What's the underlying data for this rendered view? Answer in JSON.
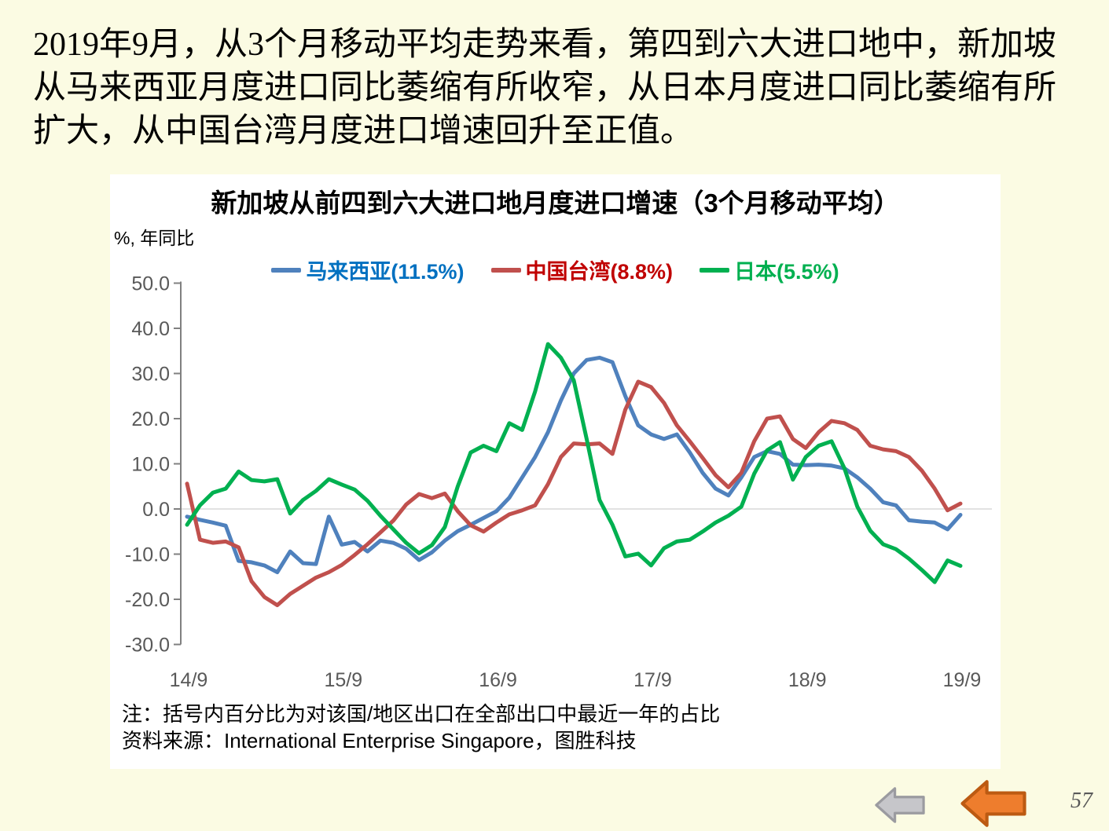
{
  "slide": {
    "background": "#FBFBE3",
    "page_number": "57",
    "intro_text": "2019年9月，从3个月移动平均走势来看，第四到六大进口地中，新加坡从马来西亚月度进口同比萎缩有所收窄，从日本月度进口同比萎缩有所扩大，从中国台湾月度进口增速回升至正值。"
  },
  "chart": {
    "title": "新加坡从前四到六大进口地月度进口增速（3个月移动平均）",
    "unit_label": "%, 年同比",
    "note_line1": "注：括号内百分比为对该国/地区出口在全部出口中最近一年的占比",
    "note_line2": "资料来源：International Enterprise Singapore，图胜科技",
    "legend": [
      {
        "label": "马来西亚(11.5%)",
        "text_color": "#0070C0",
        "line_color": "#4F81BD"
      },
      {
        "label": "中国台湾(8.8%)",
        "text_color": "#C00000",
        "line_color": "#C0504D"
      },
      {
        "label": "日本(5.5%)",
        "text_color": "#00B050",
        "line_color": "#00B050"
      }
    ],
    "colors": {
      "axis": "#808080",
      "tick_label": "#595959",
      "zero_gridline": "#D9D9D9",
      "gray_arrow_fill": "#C6C6CA",
      "gray_arrow_stroke": "#9B9BA0",
      "orange_arrow_fill": "#EE7D2D",
      "orange_arrow_stroke": "#BC5A12"
    }
  },
  "chart_data": {
    "type": "line",
    "title": "新加坡从前四到六大进口地月度进口增速（3个月移动平均）",
    "ylabel": "%, 年同比",
    "ylim": [
      -30,
      50
    ],
    "y_ticks": [
      50,
      40,
      30,
      20,
      10,
      0,
      -10,
      -20,
      -30
    ],
    "x_tick_labels": [
      "14/9",
      "15/9",
      "16/9",
      "17/9",
      "18/9",
      "19/9"
    ],
    "x_interval": "monthly from 2014/9 to 2019/9 (61 points)",
    "grid": "zero line only",
    "legend_position": "top",
    "series": [
      {
        "name": "马来西亚(11.5%)",
        "color": "#4F81BD",
        "values": [
          -1.7,
          -2.4,
          -3.0,
          -3.7,
          -11.5,
          -11.8,
          -12.5,
          -14.0,
          -9.4,
          -12.0,
          -12.2,
          -1.7,
          -7.9,
          -7.3,
          -9.4,
          -7.0,
          -7.5,
          -8.8,
          -11.3,
          -9.6,
          -7.0,
          -4.9,
          -3.5,
          -2.0,
          -0.5,
          2.5,
          7.0,
          11.5,
          17.0,
          24.0,
          30.0,
          33.0,
          33.5,
          32.5,
          25.0,
          18.5,
          16.5,
          15.5,
          16.5,
          12.5,
          8.0,
          4.5,
          3.0,
          7.0,
          11.5,
          12.8,
          12.2,
          9.8,
          9.7,
          9.8,
          9.6,
          9.0,
          7.0,
          4.5,
          1.5,
          0.8,
          -2.5,
          -2.8,
          -3.0,
          -4.5,
          -1.3
        ]
      },
      {
        "name": "中国台湾(8.8%)",
        "color": "#C0504D",
        "values": [
          5.6,
          -6.8,
          -7.5,
          -7.2,
          -8.5,
          -16.0,
          -19.5,
          -21.3,
          -18.8,
          -17.0,
          -15.2,
          -14.0,
          -12.4,
          -10.2,
          -7.8,
          -5.2,
          -2.6,
          1.0,
          3.3,
          2.4,
          3.4,
          -0.5,
          -3.6,
          -5.0,
          -3.0,
          -1.2,
          -0.3,
          0.8,
          5.5,
          11.5,
          14.5,
          14.3,
          14.5,
          12.2,
          22.0,
          28.2,
          27.0,
          23.5,
          18.5,
          15.0,
          11.3,
          7.5,
          4.8,
          8.0,
          15.0,
          20.0,
          20.5,
          15.5,
          13.5,
          17.0,
          19.5,
          19.0,
          17.5,
          14.0,
          13.2,
          12.8,
          11.5,
          8.5,
          4.5,
          -0.3,
          1.2
        ]
      },
      {
        "name": "日本(5.5%)",
        "color": "#00B050",
        "values": [
          -3.5,
          0.8,
          3.6,
          4.5,
          8.3,
          6.4,
          6.1,
          6.6,
          -1.0,
          2.0,
          4.0,
          6.6,
          5.4,
          4.3,
          1.8,
          -1.5,
          -4.5,
          -7.5,
          -9.8,
          -8.0,
          -4.0,
          5.0,
          12.5,
          14.0,
          12.8,
          19.0,
          17.5,
          26.0,
          36.5,
          33.5,
          28.5,
          15.5,
          2.0,
          -3.5,
          -10.5,
          -9.9,
          -12.5,
          -8.7,
          -7.2,
          -6.8,
          -5.0,
          -3.0,
          -1.5,
          0.5,
          7.8,
          13.0,
          14.8,
          6.5,
          11.5,
          14.0,
          15.0,
          9.0,
          0.5,
          -4.8,
          -7.8,
          -8.9,
          -11.0,
          -13.5,
          -16.2,
          -11.4,
          -12.6
        ]
      }
    ]
  }
}
